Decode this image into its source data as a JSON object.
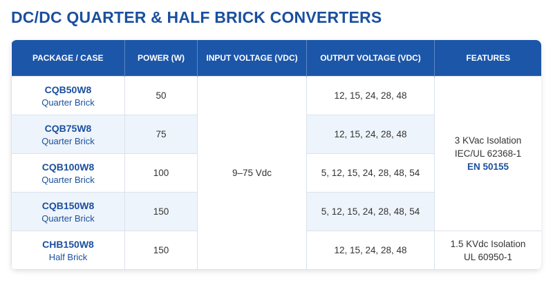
{
  "title": "DC/DC QUARTER & HALF BRICK CONVERTERS",
  "table": {
    "headers": [
      "PACKAGE / CASE",
      "POWER (W)",
      "INPUT VOLTAGE (VDC)",
      "OUTPUT VOLTAGE  (VDC)",
      "FEATURES"
    ],
    "rows": [
      {
        "package": "CQB50W8",
        "case": "Quarter Brick",
        "power": 50,
        "output": "12, 15, 24, 28, 48"
      },
      {
        "package": "CQB75W8",
        "case": "Quarter Brick",
        "power": 75,
        "output": "12, 15, 24, 28, 48"
      },
      {
        "package": "CQB100W8",
        "case": "Quarter Brick",
        "power": 100,
        "output": "5, 12, 15, 24, 28, 48, 54"
      },
      {
        "package": "CQB150W8",
        "case": "Quarter Brick",
        "power": 150,
        "output": "5, 12, 15, 24, 28, 48, 54"
      },
      {
        "package": "CHB150W8",
        "case": "Half Brick",
        "power": 150,
        "output": "12, 15, 24, 28, 48"
      }
    ],
    "input_voltage": "9–75 Vdc",
    "features": [
      {
        "lines": [
          "3 KVac Isolation",
          "IEC/UL 62368-1",
          "EN 50155"
        ]
      },
      {
        "lines": [
          "1.5 KVdc Isolation",
          "UL 60950-1"
        ]
      }
    ]
  }
}
